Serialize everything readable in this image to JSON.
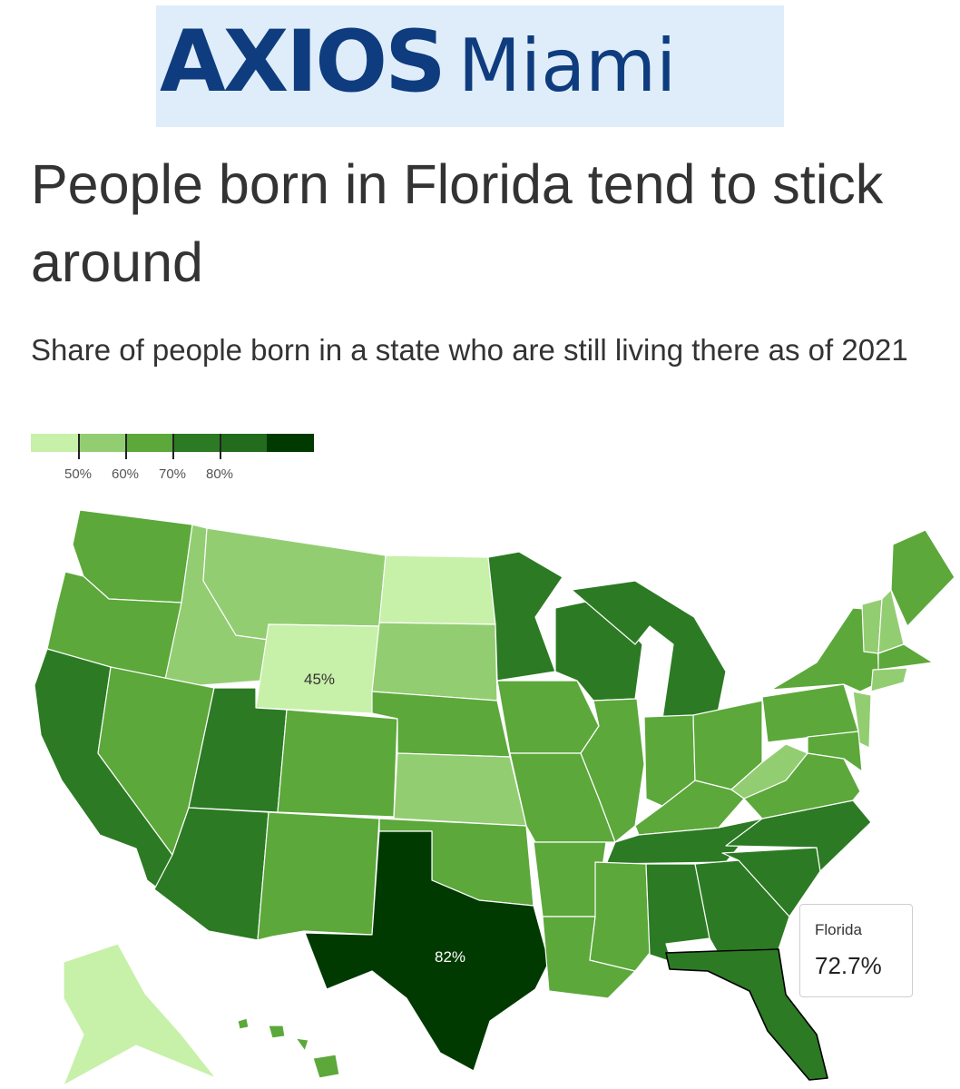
{
  "header": {
    "brand_main": "AXIOS",
    "brand_sub": "Miami",
    "title": "People born in Florida tend to stick around",
    "subtitle": "Share of people born in a state who are still living there as of 2021"
  },
  "legend": {
    "colors": [
      "#c7f0a9",
      "#93cd72",
      "#5ca83b",
      "#2c7a23",
      "#236b1d",
      "#003a00"
    ],
    "labels": [
      "50%",
      "60%",
      "70%",
      "80%"
    ]
  },
  "map_labels": {
    "wyoming": "45%",
    "texas": "82%"
  },
  "tooltip": {
    "state": "Florida",
    "value": "72.7%"
  },
  "colors": {
    "bin_45": "#c7f0a9",
    "bin_50": "#93cd72",
    "bin_60": "#5ca83b",
    "bin_70": "#2c7a23",
    "bin_80": "#003a00",
    "brand": "#0e3c7e",
    "banner_bg": "#deedf9"
  }
}
